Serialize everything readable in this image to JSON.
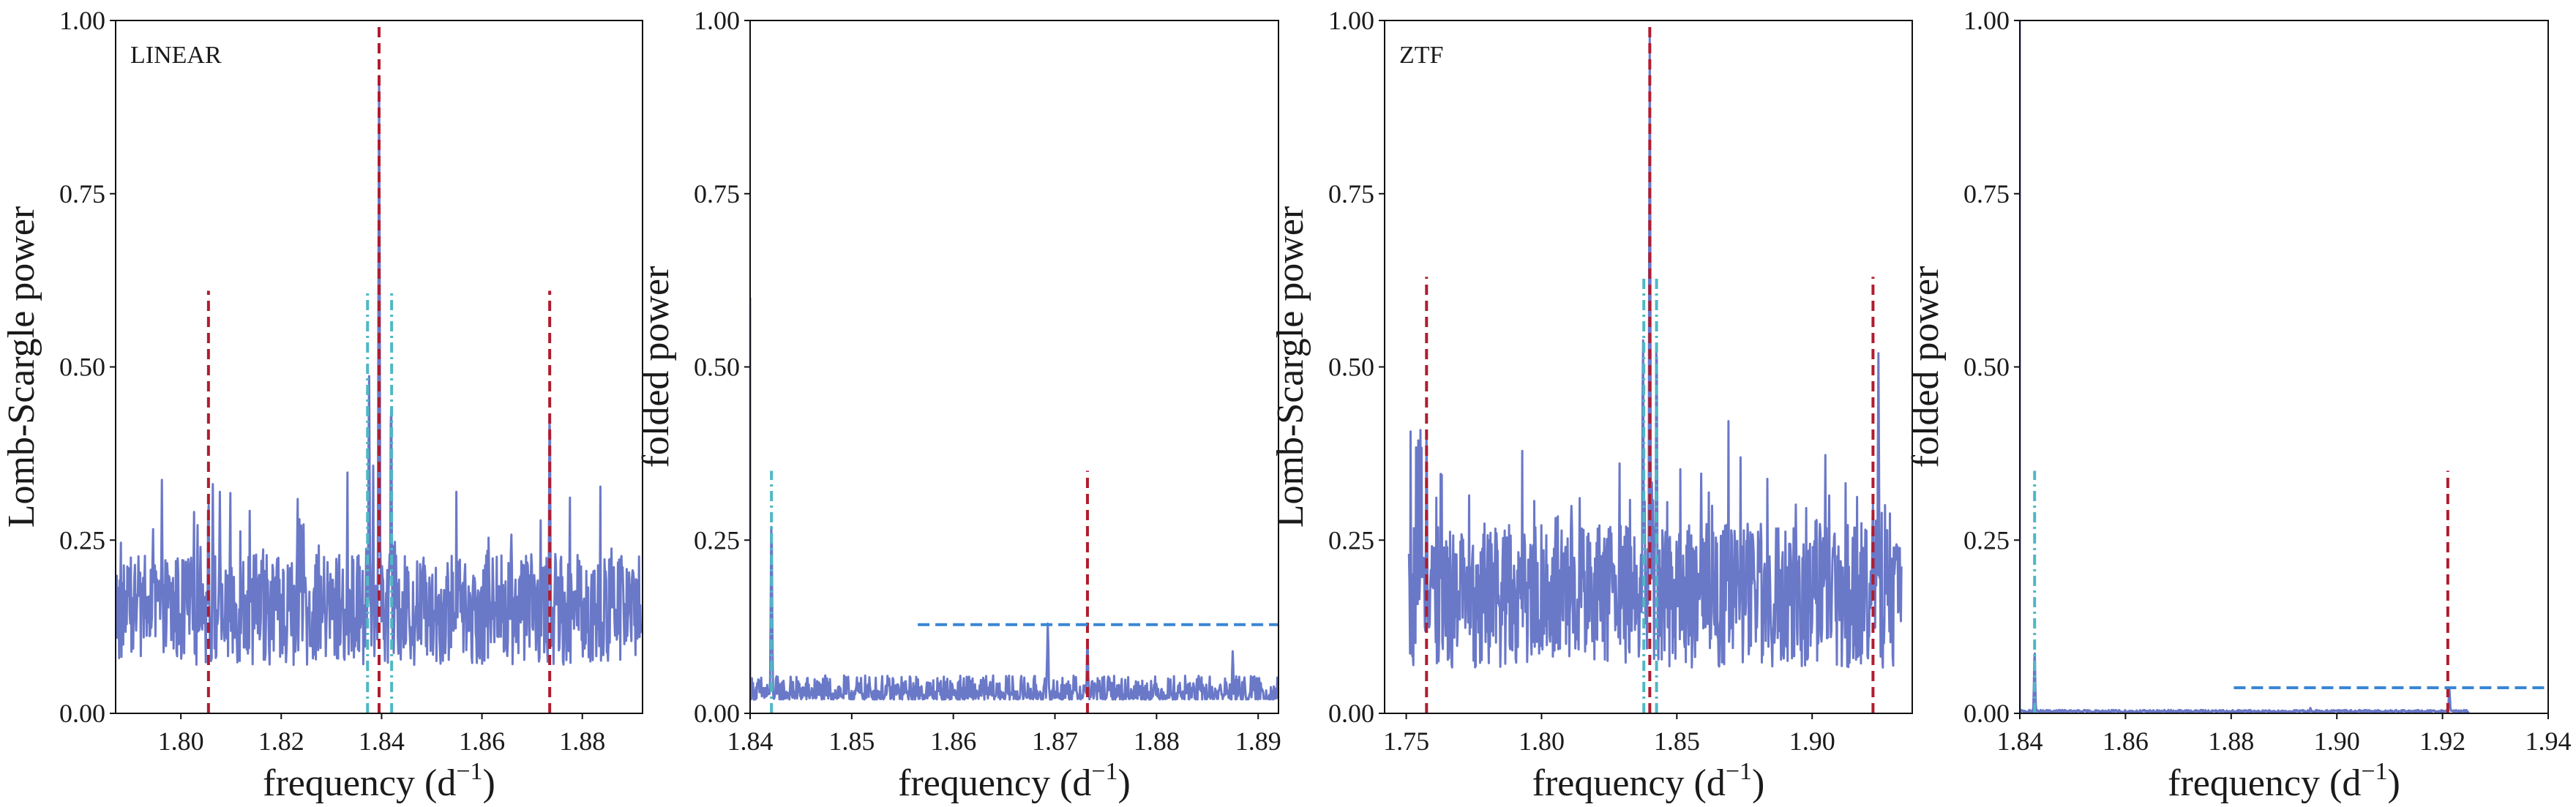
{
  "colors": {
    "signal": "#6a78c8",
    "true_peak": "#b01c2e",
    "alias": "#4fb8c4",
    "threshold": "#3a86d4"
  },
  "chart_data": [
    {
      "type": "line",
      "panel": "LINEAR periodogram",
      "label": "LINEAR",
      "xlabel": "frequency (d",
      "xlabel_exp": "−1",
      "xlabel_close": ")",
      "ylabel": "Lomb-Scargle power",
      "xlim": [
        1.787,
        1.892
      ],
      "ylim": [
        0,
        1
      ],
      "xticks": [
        "1.80",
        "1.82",
        "1.84",
        "1.86",
        "1.88"
      ],
      "xtick_values": [
        1.8,
        1.82,
        1.84,
        1.86,
        1.88
      ],
      "yticks": [
        "0.00",
        "0.25",
        "0.50",
        "0.75",
        "1.00"
      ],
      "ytick_values": [
        0,
        0.25,
        0.5,
        0.75,
        1.0
      ],
      "series": [
        {
          "kind": "noise_spectrum",
          "x_range": [
            1.787,
            1.892
          ],
          "baseline": 0.15,
          "spread": 0.1,
          "peaks": [
            {
              "x": 1.8395,
              "y": 0.92
            },
            {
              "x": 1.8375,
              "y": 0.49
            },
            {
              "x": 1.8419,
              "y": 0.47
            },
            {
              "x": 1.8735,
              "y": 0.45
            },
            {
              "x": 1.8055,
              "y": 0.32
            }
          ]
        }
      ],
      "vlines": [
        {
          "x": 1.8395,
          "y": [
            0,
            1
          ],
          "style": "true_peak"
        },
        {
          "x": 1.8055,
          "y": [
            0,
            0.61
          ],
          "style": "true_peak"
        },
        {
          "x": 1.8735,
          "y": [
            0,
            0.61
          ],
          "style": "true_peak"
        },
        {
          "x": 1.8372,
          "y": [
            0,
            0.61
          ],
          "style": "alias"
        },
        {
          "x": 1.842,
          "y": [
            0,
            0.61
          ],
          "style": "alias"
        }
      ],
      "hlines": []
    },
    {
      "type": "line",
      "panel": "LINEAR folded",
      "label": "",
      "xlabel": "frequency (d",
      "xlabel_exp": "−1",
      "xlabel_close": ")",
      "ylabel": "folded power",
      "xlim": [
        1.84,
        1.892
      ],
      "ylim": [
        0,
        1
      ],
      "xticks": [
        "1.84",
        "1.85",
        "1.86",
        "1.87",
        "1.88",
        "1.89"
      ],
      "xtick_values": [
        1.84,
        1.85,
        1.86,
        1.87,
        1.88,
        1.89
      ],
      "yticks": [
        "0.00",
        "0.25",
        "0.50",
        "0.75",
        "1.00"
      ],
      "ytick_values": [
        0,
        0.25,
        0.5,
        0.75,
        1.0
      ],
      "series": [
        {
          "kind": "folded_spectrum",
          "x_range": [
            1.84,
            1.892
          ],
          "baseline": 0.02,
          "spread": 0.035,
          "start_value": 0.6,
          "peaks": [
            {
              "x": 1.8421,
              "y": 0.28
            },
            {
              "x": 1.8693,
              "y": 0.13
            },
            {
              "x": 1.8732,
              "y": 0.11
            },
            {
              "x": 1.8875,
              "y": 0.09
            }
          ]
        }
      ],
      "vlines": [
        {
          "x": 1.8421,
          "y": [
            0,
            0.35
          ],
          "style": "alias"
        },
        {
          "x": 1.8732,
          "y": [
            0,
            0.35
          ],
          "style": "true_peak"
        }
      ],
      "hlines": [
        {
          "y": 0.128,
          "x": [
            1.8565,
            1.892
          ],
          "style": "threshold"
        }
      ]
    },
    {
      "type": "line",
      "panel": "ZTF periodogram",
      "label": "ZTF",
      "xlabel": "frequency (d",
      "xlabel_exp": "−1",
      "xlabel_close": ")",
      "ylabel": "Lomb-Scargle power",
      "xlim": [
        1.742,
        1.937
      ],
      "ylim": [
        0,
        1
      ],
      "xticks": [
        "1.75",
        "1.80",
        "1.85",
        "1.90"
      ],
      "xtick_values": [
        1.75,
        1.8,
        1.85,
        1.9
      ],
      "yticks": [
        "0.00",
        "0.25",
        "0.50",
        "0.75",
        "1.00"
      ],
      "ytick_values": [
        0,
        0.25,
        0.5,
        0.75,
        1.0
      ],
      "series": [
        {
          "kind": "noise_spectrum",
          "x_range": [
            1.751,
            1.933
          ],
          "baseline": 0.17,
          "spread": 0.13,
          "peaks": [
            {
              "x": 1.84,
              "y": 0.98
            },
            {
              "x": 1.8375,
              "y": 0.55
            },
            {
              "x": 1.8425,
              "y": 0.56
            },
            {
              "x": 1.9245,
              "y": 0.52
            },
            {
              "x": 1.7575,
              "y": 0.41
            }
          ]
        }
      ],
      "vlines": [
        {
          "x": 1.84,
          "y": [
            0,
            1
          ],
          "style": "true_peak"
        },
        {
          "x": 1.7575,
          "y": [
            0,
            0.63
          ],
          "style": "true_peak"
        },
        {
          "x": 1.9225,
          "y": [
            0,
            0.63
          ],
          "style": "true_peak"
        },
        {
          "x": 1.8378,
          "y": [
            0,
            0.63
          ],
          "style": "alias"
        },
        {
          "x": 1.8425,
          "y": [
            0,
            0.63
          ],
          "style": "alias"
        }
      ],
      "hlines": []
    },
    {
      "type": "line",
      "panel": "ZTF folded",
      "label": "",
      "xlabel": "frequency (d",
      "xlabel_exp": "−1",
      "xlabel_close": ")",
      "ylabel": "folded power",
      "xlim": [
        1.84,
        1.94
      ],
      "ylim": [
        0,
        1
      ],
      "xticks": [
        "1.84",
        "1.86",
        "1.88",
        "1.90",
        "1.92",
        "1.94"
      ],
      "xtick_values": [
        1.84,
        1.86,
        1.88,
        1.9,
        1.92,
        1.94
      ],
      "yticks": [
        "0.00",
        "0.25",
        "0.50",
        "0.75",
        "1.00"
      ],
      "ytick_values": [
        0,
        0.25,
        0.5,
        0.75,
        1.0
      ],
      "series": [
        {
          "kind": "folded_spectrum",
          "x_range": [
            1.84,
            1.925
          ],
          "baseline": 0.002,
          "spread": 0.003,
          "start_value": 1.0,
          "peaks": [
            {
              "x": 1.8428,
              "y": 0.09
            },
            {
              "x": 1.9213,
              "y": 0.035
            },
            {
              "x": 1.895,
              "y": 0.008
            }
          ]
        }
      ],
      "vlines": [
        {
          "x": 1.8428,
          "y": [
            0,
            0.35
          ],
          "style": "alias"
        },
        {
          "x": 1.921,
          "y": [
            0,
            0.35
          ],
          "style": "true_peak"
        }
      ],
      "hlines": [
        {
          "y": 0.037,
          "x": [
            1.8805,
            1.94
          ],
          "style": "threshold"
        }
      ]
    }
  ]
}
